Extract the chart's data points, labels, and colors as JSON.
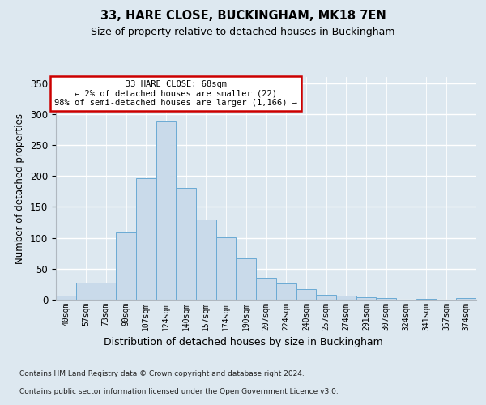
{
  "title": "33, HARE CLOSE, BUCKINGHAM, MK18 7EN",
  "subtitle": "Size of property relative to detached houses in Buckingham",
  "xlabel": "Distribution of detached houses by size in Buckingham",
  "ylabel": "Number of detached properties",
  "footnote1": "Contains HM Land Registry data © Crown copyright and database right 2024.",
  "footnote2": "Contains public sector information licensed under the Open Government Licence v3.0.",
  "annotation_line1": "33 HARE CLOSE: 68sqm",
  "annotation_line2": "← 2% of detached houses are smaller (22)",
  "annotation_line3": "98% of semi-detached houses are larger (1,166) →",
  "bar_color": "#c9daea",
  "bar_edge_color": "#6aaad4",
  "annotation_box_bg": "#ffffff",
  "annotation_box_edge": "#cc0000",
  "categories": [
    "40sqm",
    "57sqm",
    "73sqm",
    "90sqm",
    "107sqm",
    "124sqm",
    "140sqm",
    "157sqm",
    "174sqm",
    "190sqm",
    "207sqm",
    "224sqm",
    "240sqm",
    "257sqm",
    "274sqm",
    "291sqm",
    "307sqm",
    "324sqm",
    "341sqm",
    "357sqm",
    "374sqm"
  ],
  "values": [
    6,
    27,
    28,
    109,
    197,
    289,
    181,
    130,
    101,
    67,
    36,
    26,
    17,
    8,
    6,
    4,
    3,
    0,
    1,
    0,
    2
  ],
  "ylim": [
    0,
    360
  ],
  "yticks": [
    0,
    50,
    100,
    150,
    200,
    250,
    300,
    350
  ],
  "background_color": "#dde8f0",
  "grid_color": "#ffffff",
  "title_fontsize": 10.5,
  "subtitle_fontsize": 9,
  "ylabel_fontsize": 8.5,
  "xlabel_fontsize": 9,
  "ytick_fontsize": 8.5,
  "xtick_fontsize": 7,
  "annot_fontsize": 7.5,
  "footnote_fontsize": 6.5
}
